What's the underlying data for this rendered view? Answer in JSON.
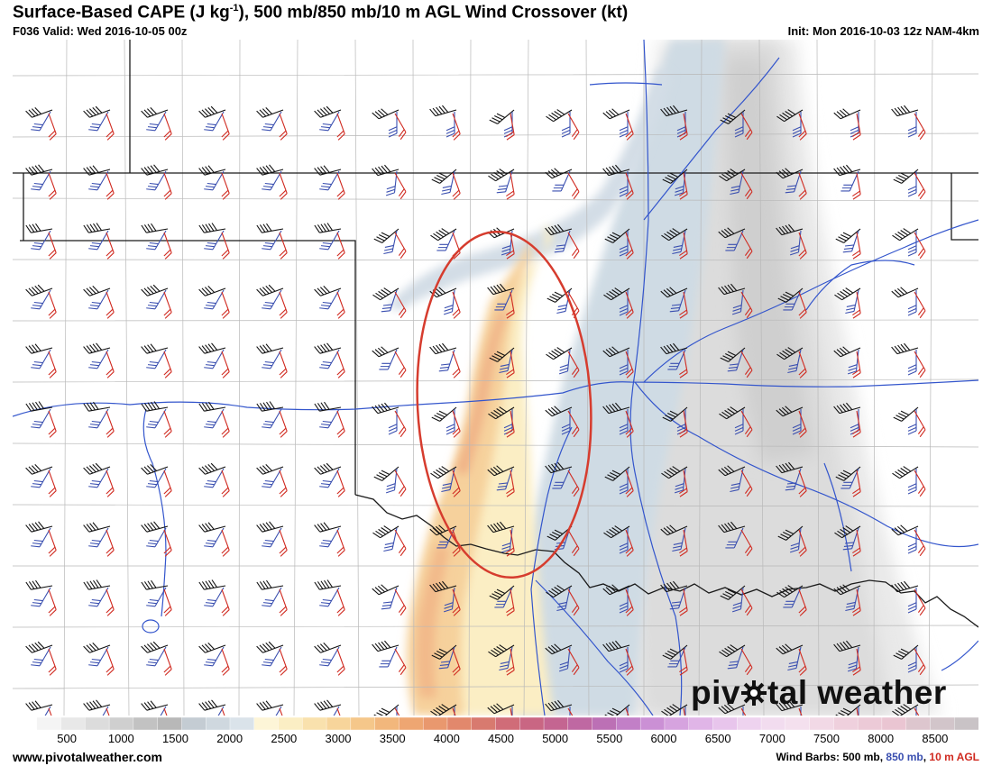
{
  "header": {
    "title_main": "Surface-Based CAPE (J kg",
    "title_sup": "-1",
    "title_rest": "), 500 mb/850 mb/10 m AGL Wind Crossover (kt)",
    "valid": "F036 Valid: Wed 2016-10-05 00z",
    "init": "Init: Mon 2016-10-03 12z NAM-4km"
  },
  "logo": {
    "part1": "piv",
    "part2": "tal weather",
    "icon": "gear-icon"
  },
  "colorbar": {
    "ticks": [
      "500",
      "1000",
      "1500",
      "2000",
      "2500",
      "3000",
      "3500",
      "4000",
      "4500",
      "5000",
      "5500",
      "6000",
      "6500",
      "7000",
      "7500",
      "8000",
      "8500"
    ],
    "min": 0,
    "max": 8900,
    "colors": [
      "#ffffff",
      "#f4f4f4",
      "#e8e8e8",
      "#dcdcdc",
      "#cfcfcf",
      "#c2c2c2",
      "#b8b8b8",
      "#c4ccd3",
      "#cfd8df",
      "#dae3ea",
      "#fdf5d7",
      "#fbeec4",
      "#f9e1ad",
      "#f7d59b",
      "#f5c78a",
      "#f2b77c",
      "#eea672",
      "#e9986e",
      "#e2886c",
      "#d87a6f",
      "#d06c78",
      "#c96683",
      "#c46591",
      "#bf68a2",
      "#bc70b5",
      "#c27fc7",
      "#cb90d5",
      "#d6a3df",
      "#e0b5e7",
      "#e8c5ec",
      "#eed3ef",
      "#f2dcef",
      "#f4e0ee",
      "#f2d9e6",
      "#efd0dd",
      "#eccad7",
      "#eac5d2",
      "#ddc6ce",
      "#d2c5ca",
      "#c9c3c6"
    ]
  },
  "annotation": {
    "ellipse_color": "#d63c2e"
  },
  "footer": {
    "url": "www.pivotalweather.com",
    "legend_prefix": "Wind Barbs: ",
    "legend_500": "500 mb",
    "legend_sep1": ", ",
    "legend_850": "850 mb",
    "legend_sep2": ", ",
    "legend_10m": "10 m AGL"
  },
  "colors": {
    "barb_500": "#111111",
    "barb_850": "#3a4fb0",
    "barb_10m": "#d02a20",
    "rivers": "#3355cc"
  }
}
